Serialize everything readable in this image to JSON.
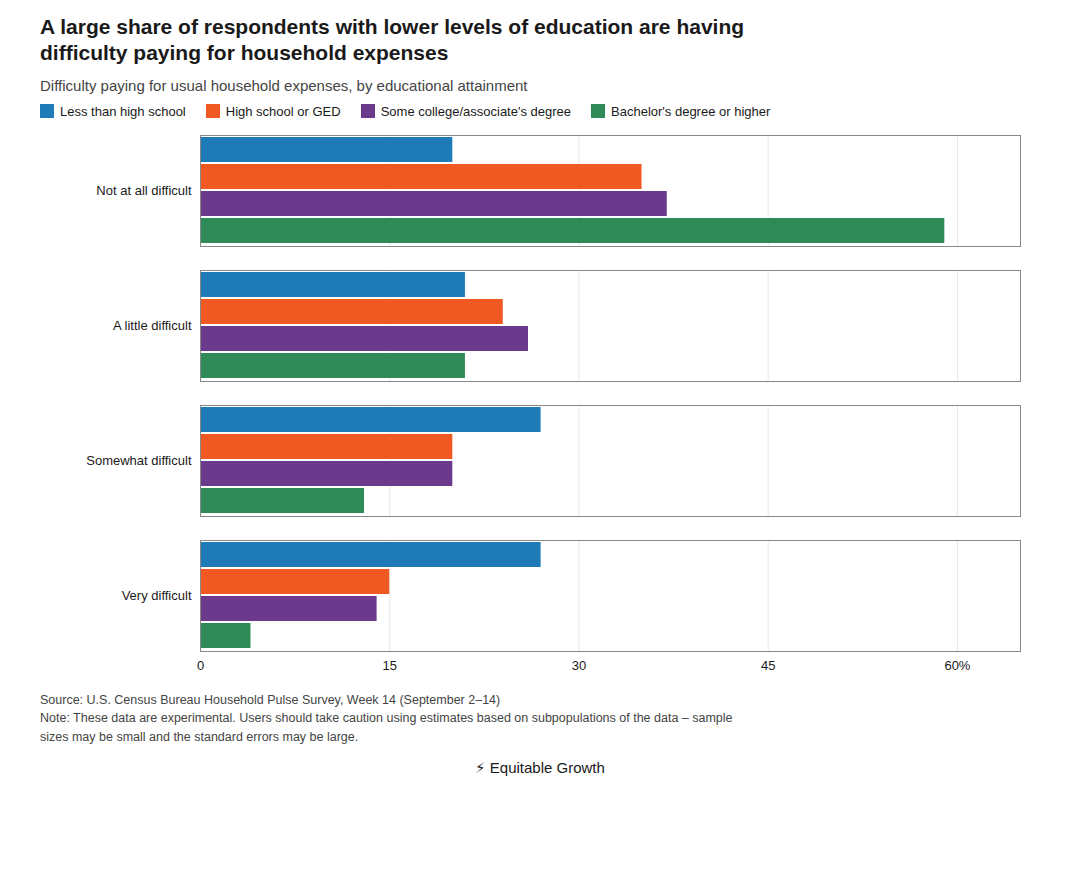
{
  "chart_data": {
    "type": "bar",
    "orientation": "horizontal",
    "title": "A large share of respondents with lower levels of education are having\ndifficulty paying for household expenses",
    "subtitle": "Difficulty paying for usual household expenses, by educational attainment",
    "categories": [
      "Not at all difficult",
      "A little difficult",
      "Somewhat difficult",
      "Very difficult"
    ],
    "series": [
      {
        "name": "Less than high school",
        "color": "#1f7bb8",
        "values": [
          20,
          21,
          27,
          27
        ]
      },
      {
        "name": "High school or GED",
        "color": "#f05a22",
        "values": [
          35,
          24,
          20,
          15
        ]
      },
      {
        "name": "Some college/associate's degree",
        "color": "#6b3a8c",
        "values": [
          37,
          26,
          20,
          14
        ]
      },
      {
        "name": "Bachelor's degree or higher",
        "color": "#2e8b57",
        "values": [
          59,
          21,
          13,
          4
        ]
      }
    ],
    "xlim": [
      0,
      65
    ],
    "xticks": [
      0,
      15,
      30,
      45,
      {
        "value": 60,
        "label": "60%"
      }
    ],
    "grid": true,
    "legend": "upper left",
    "annotations": [
      "Source: U.S. Census Bureau Household Pulse Survey, Week 14 (September 2–14)\nNote: These data are experimental. Users should take caution using estimates based on subpopulations of the data – sample\nsizes may be small and the standard errors may be large.",
      "⚡ Equitable Growth"
    ]
  }
}
